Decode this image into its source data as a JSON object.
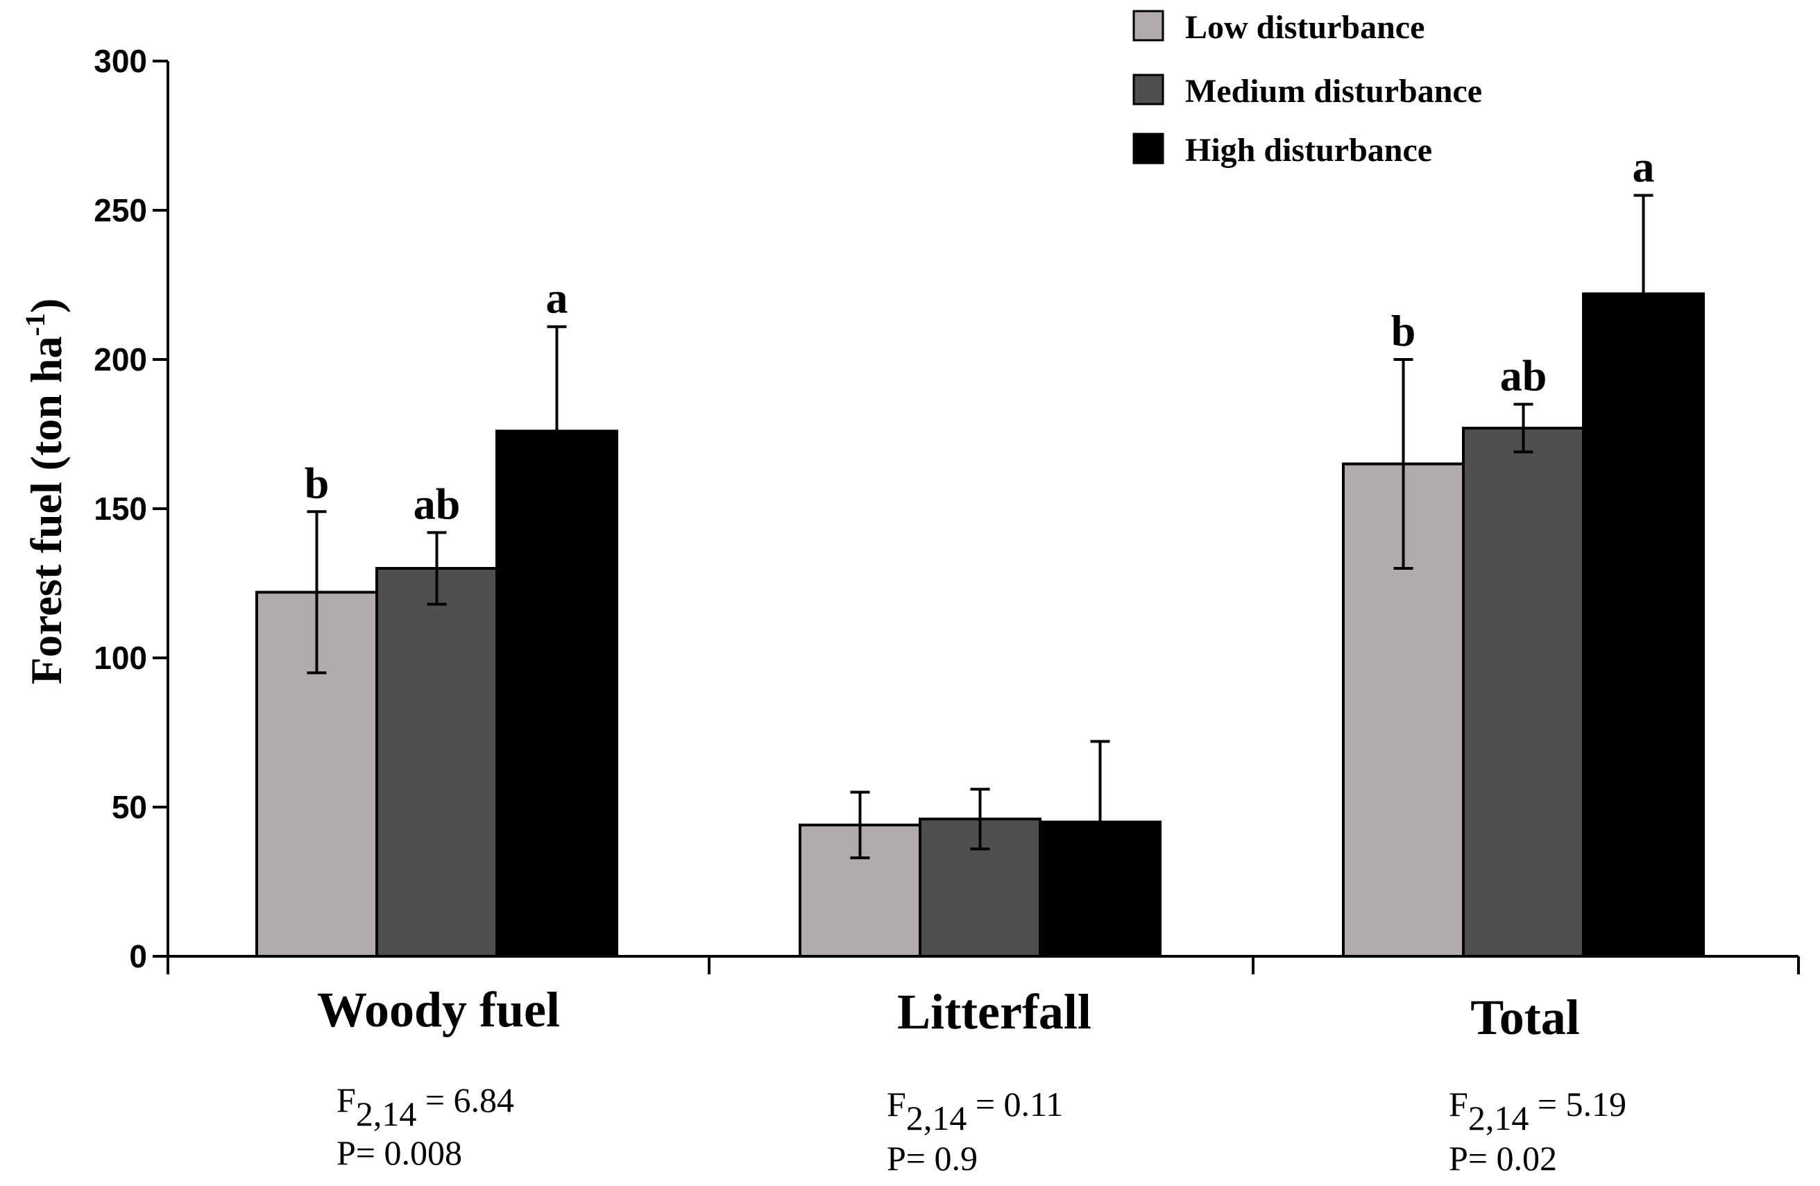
{
  "chart_data": {
    "type": "bar",
    "title": "",
    "xlabel": "",
    "ylabel": "Forest fuel (ton ha",
    "ylabel_superscript": "-1",
    "ylabel_close": ")",
    "ylim": [
      0,
      300
    ],
    "yticks": [
      0,
      50,
      100,
      150,
      200,
      250,
      300
    ],
    "ytick_labels": [
      "0",
      "50",
      "100",
      "150",
      "200",
      "250",
      "300"
    ],
    "categories": [
      "Woody fuel",
      "Litterfall",
      "Total"
    ],
    "legend_position": "top-right",
    "series": [
      {
        "name": "Low disturbance",
        "color": "#b0acab",
        "values": [
          122,
          44,
          165
        ],
        "errors": [
          27,
          11,
          35
        ],
        "letters": [
          "b",
          "",
          "b"
        ]
      },
      {
        "name": "Medium disturbance",
        "color": "#4f4f4f",
        "values": [
          130,
          46,
          177
        ],
        "errors": [
          12,
          10,
          8
        ],
        "letters": [
          "ab",
          "",
          "ab"
        ]
      },
      {
        "name": "High disturbance",
        "color": "#000000",
        "values": [
          176,
          45,
          222
        ],
        "errors": [
          35,
          27,
          33
        ],
        "letters": [
          "a",
          "",
          "a"
        ]
      }
    ],
    "stats": [
      {
        "f_prefix": "F",
        "f_sub": "2,14",
        "f_value": " = 6.84",
        "p_text": "P= 0.008"
      },
      {
        "f_prefix": "F",
        "f_sub": "2,14",
        "f_value": " = 0.11",
        "p_text": "P= 0.9"
      },
      {
        "f_prefix": "F",
        "f_sub": "2,14",
        "f_value": " = 5.19",
        "p_text": "P= 0.02"
      }
    ]
  }
}
